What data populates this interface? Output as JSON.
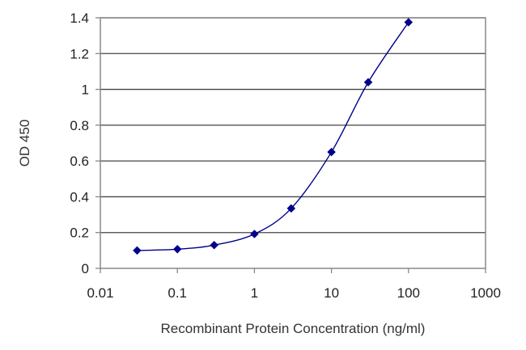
{
  "chart_data": {
    "type": "line",
    "title": "",
    "xlabel": "Recombinant Protein Concentration (ng/ml)",
    "ylabel": "OD 450",
    "x_scale": "log",
    "xlim": [
      0.01,
      1000
    ],
    "ylim": [
      0,
      1.4
    ],
    "x_ticks": [
      0.01,
      0.1,
      1,
      10,
      100,
      1000
    ],
    "x_tick_labels": [
      "0.01",
      "0.1",
      "1",
      "10",
      "100",
      "1000"
    ],
    "y_ticks": [
      0,
      0.2,
      0.4,
      0.6,
      0.8,
      1,
      1.2,
      1.4
    ],
    "y_tick_labels": [
      "0",
      "0.2",
      "0.4",
      "0.6",
      "0.8",
      "1",
      "1.2",
      "1.4"
    ],
    "grid": "horizontal",
    "legend": "none",
    "series": [
      {
        "x": [
          0.03,
          0.1,
          0.3,
          1,
          3,
          10,
          30,
          100
        ],
        "y": [
          0.1,
          0.107,
          0.13,
          0.192,
          0.335,
          0.65,
          1.04,
          1.375
        ],
        "color": "#00008b"
      }
    ]
  }
}
